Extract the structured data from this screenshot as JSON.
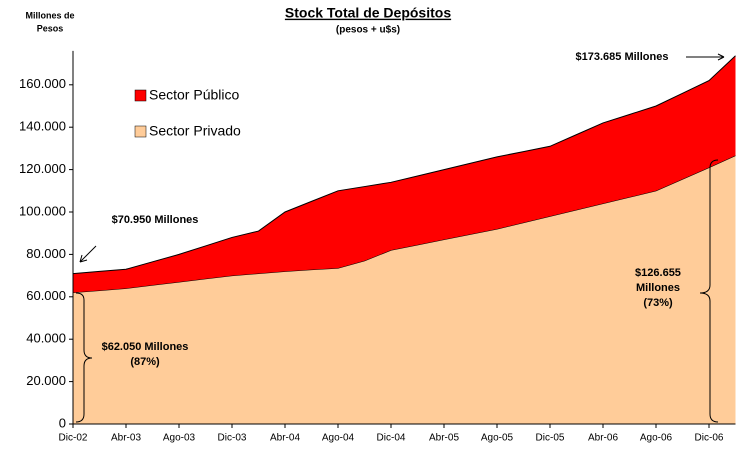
{
  "chart_data": {
    "type": "stacked_area",
    "title": "Stock Total de Depósitos",
    "subtitle": "(pesos + u$s)",
    "y_axis_label": [
      "Millones de",
      "Pesos"
    ],
    "categories": [
      "Dic-02",
      null,
      "Abr-03",
      null,
      "Ago-03",
      null,
      "Dic-03",
      null,
      "Abr-04",
      null,
      "Ago-04",
      null,
      "Dic-04",
      null,
      "Abr-05",
      null,
      "Ago-05",
      null,
      "Dic-05",
      null,
      "Abr-06",
      null,
      "Ago-06",
      null,
      "Dic-06",
      null
    ],
    "series": [
      {
        "name": "Sector Público",
        "color": "#ff0000",
        "values": [
          8900,
          9000,
          9000,
          11000,
          13000,
          15500,
          18000,
          20000,
          28000,
          32200,
          36500,
          35000,
          32000,
          32500,
          33000,
          33500,
          34000,
          33500,
          33000,
          35500,
          38000,
          39000,
          40000,
          40500,
          41000,
          47030
        ]
      },
      {
        "name": "Sector Privado",
        "color": "#ffcc99",
        "values": [
          62050,
          63000,
          64000,
          65500,
          67000,
          68500,
          70000,
          71000,
          72000,
          72800,
          73500,
          77000,
          82000,
          84500,
          87000,
          89500,
          92000,
          95000,
          98000,
          101000,
          104000,
          107000,
          110000,
          115500,
          121000,
          126655
        ]
      }
    ],
    "ylim": [
      0,
      176000
    ],
    "yticks": [
      0,
      {
        "value": 20000,
        "label": "20.000"
      },
      {
        "value": 40000,
        "label": "40.000"
      },
      {
        "value": 60000,
        "label": "60.000"
      },
      {
        "value": 80000,
        "label": "80.000"
      },
      {
        "value": 100000,
        "label": "100.000"
      },
      {
        "value": 120000,
        "label": "120.000"
      },
      {
        "value": 140000,
        "label": "140.000"
      },
      {
        "value": 160000,
        "label": "160.000"
      }
    ],
    "annotations": [
      {
        "lines": [
          "$173.685 Millones"
        ]
      },
      {
        "lines": [
          "$70.950 Millones"
        ]
      },
      {
        "lines": [
          "$62.050 Millones",
          "(87%)"
        ]
      },
      {
        "lines": [
          "$126.655",
          "Millones",
          "(73%)"
        ]
      }
    ]
  }
}
